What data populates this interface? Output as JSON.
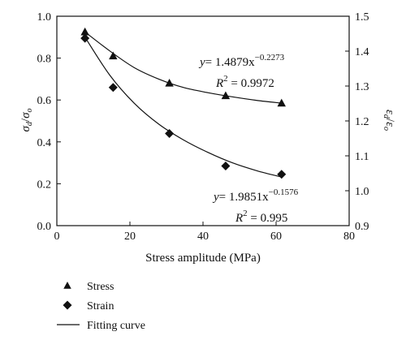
{
  "chart_data": {
    "type": "scatter",
    "xlabel": "Stress amplitude (MPa)",
    "ylabel_left": "σd/σo",
    "ylabel_right": "εd/εo",
    "xlim": [
      0,
      80
    ],
    "ylim_left": [
      0.0,
      1.0
    ],
    "ylim_right": [
      0.9,
      1.5
    ],
    "x_ticks": [
      "0",
      "20",
      "40",
      "60",
      "80"
    ],
    "y_ticks_left": [
      "0.0",
      "0.2",
      "0.4",
      "0.6",
      "0.8",
      "1.0"
    ],
    "y_ticks_right": [
      "0.9",
      "1.0",
      "1.1",
      "1.2",
      "1.3",
      "1.4",
      "1.5"
    ],
    "grid": false,
    "series": [
      {
        "name": "Stress",
        "marker": "triangle",
        "axis": "left",
        "x": [
          7.7,
          15.4,
          30.8,
          46.2,
          61.5
        ],
        "y": [
          0.925,
          0.81,
          0.68,
          0.62,
          0.585
        ]
      },
      {
        "name": "Strain",
        "marker": "diamond",
        "axis": "left",
        "x": [
          7.7,
          15.4,
          30.8,
          46.2,
          61.5
        ],
        "y": [
          0.895,
          0.66,
          0.44,
          0.285,
          0.245
        ]
      }
    ],
    "fits": [
      {
        "series": "Stress",
        "coef": "1.4879",
        "exponent": "−0.2273",
        "r2": "0.9972",
        "x_range": [
          7.7,
          61.5
        ],
        "curve_y": [
          0.925,
          0.835,
          0.755,
          0.7,
          0.66,
          0.635,
          0.615,
          0.598,
          0.585
        ]
      },
      {
        "series": "Strain",
        "coef": "1.9851",
        "exponent": "−0.1576",
        "r2": "0.995",
        "x_range": [
          7.7,
          61.5
        ],
        "curve_y": [
          0.9,
          0.72,
          0.585,
          0.485,
          0.41,
          0.35,
          0.3,
          0.262,
          0.232
        ]
      }
    ],
    "legend": {
      "position": "bottom-left",
      "items": [
        {
          "label": "Stress",
          "marker": "triangle"
        },
        {
          "label": "Strain",
          "marker": "diamond"
        },
        {
          "label": "Fitting curve",
          "marker": "line"
        }
      ]
    }
  },
  "annotations": {
    "stress_eq_y": "y",
    "stress_eq_rhs": "= 1.4879x",
    "stress_eq_exp": "−0.2273",
    "stress_r2_label": "R",
    "stress_r2_val": " = 0.9972",
    "strain_eq_y": "y",
    "strain_eq_rhs": "= 1.9851x",
    "strain_eq_exp": "−0.1576",
    "strain_r2_label": "R",
    "strain_r2_val": " = 0.995",
    "r2_sup": "2"
  },
  "colors": {
    "ink": "#111111",
    "background": "#ffffff"
  }
}
